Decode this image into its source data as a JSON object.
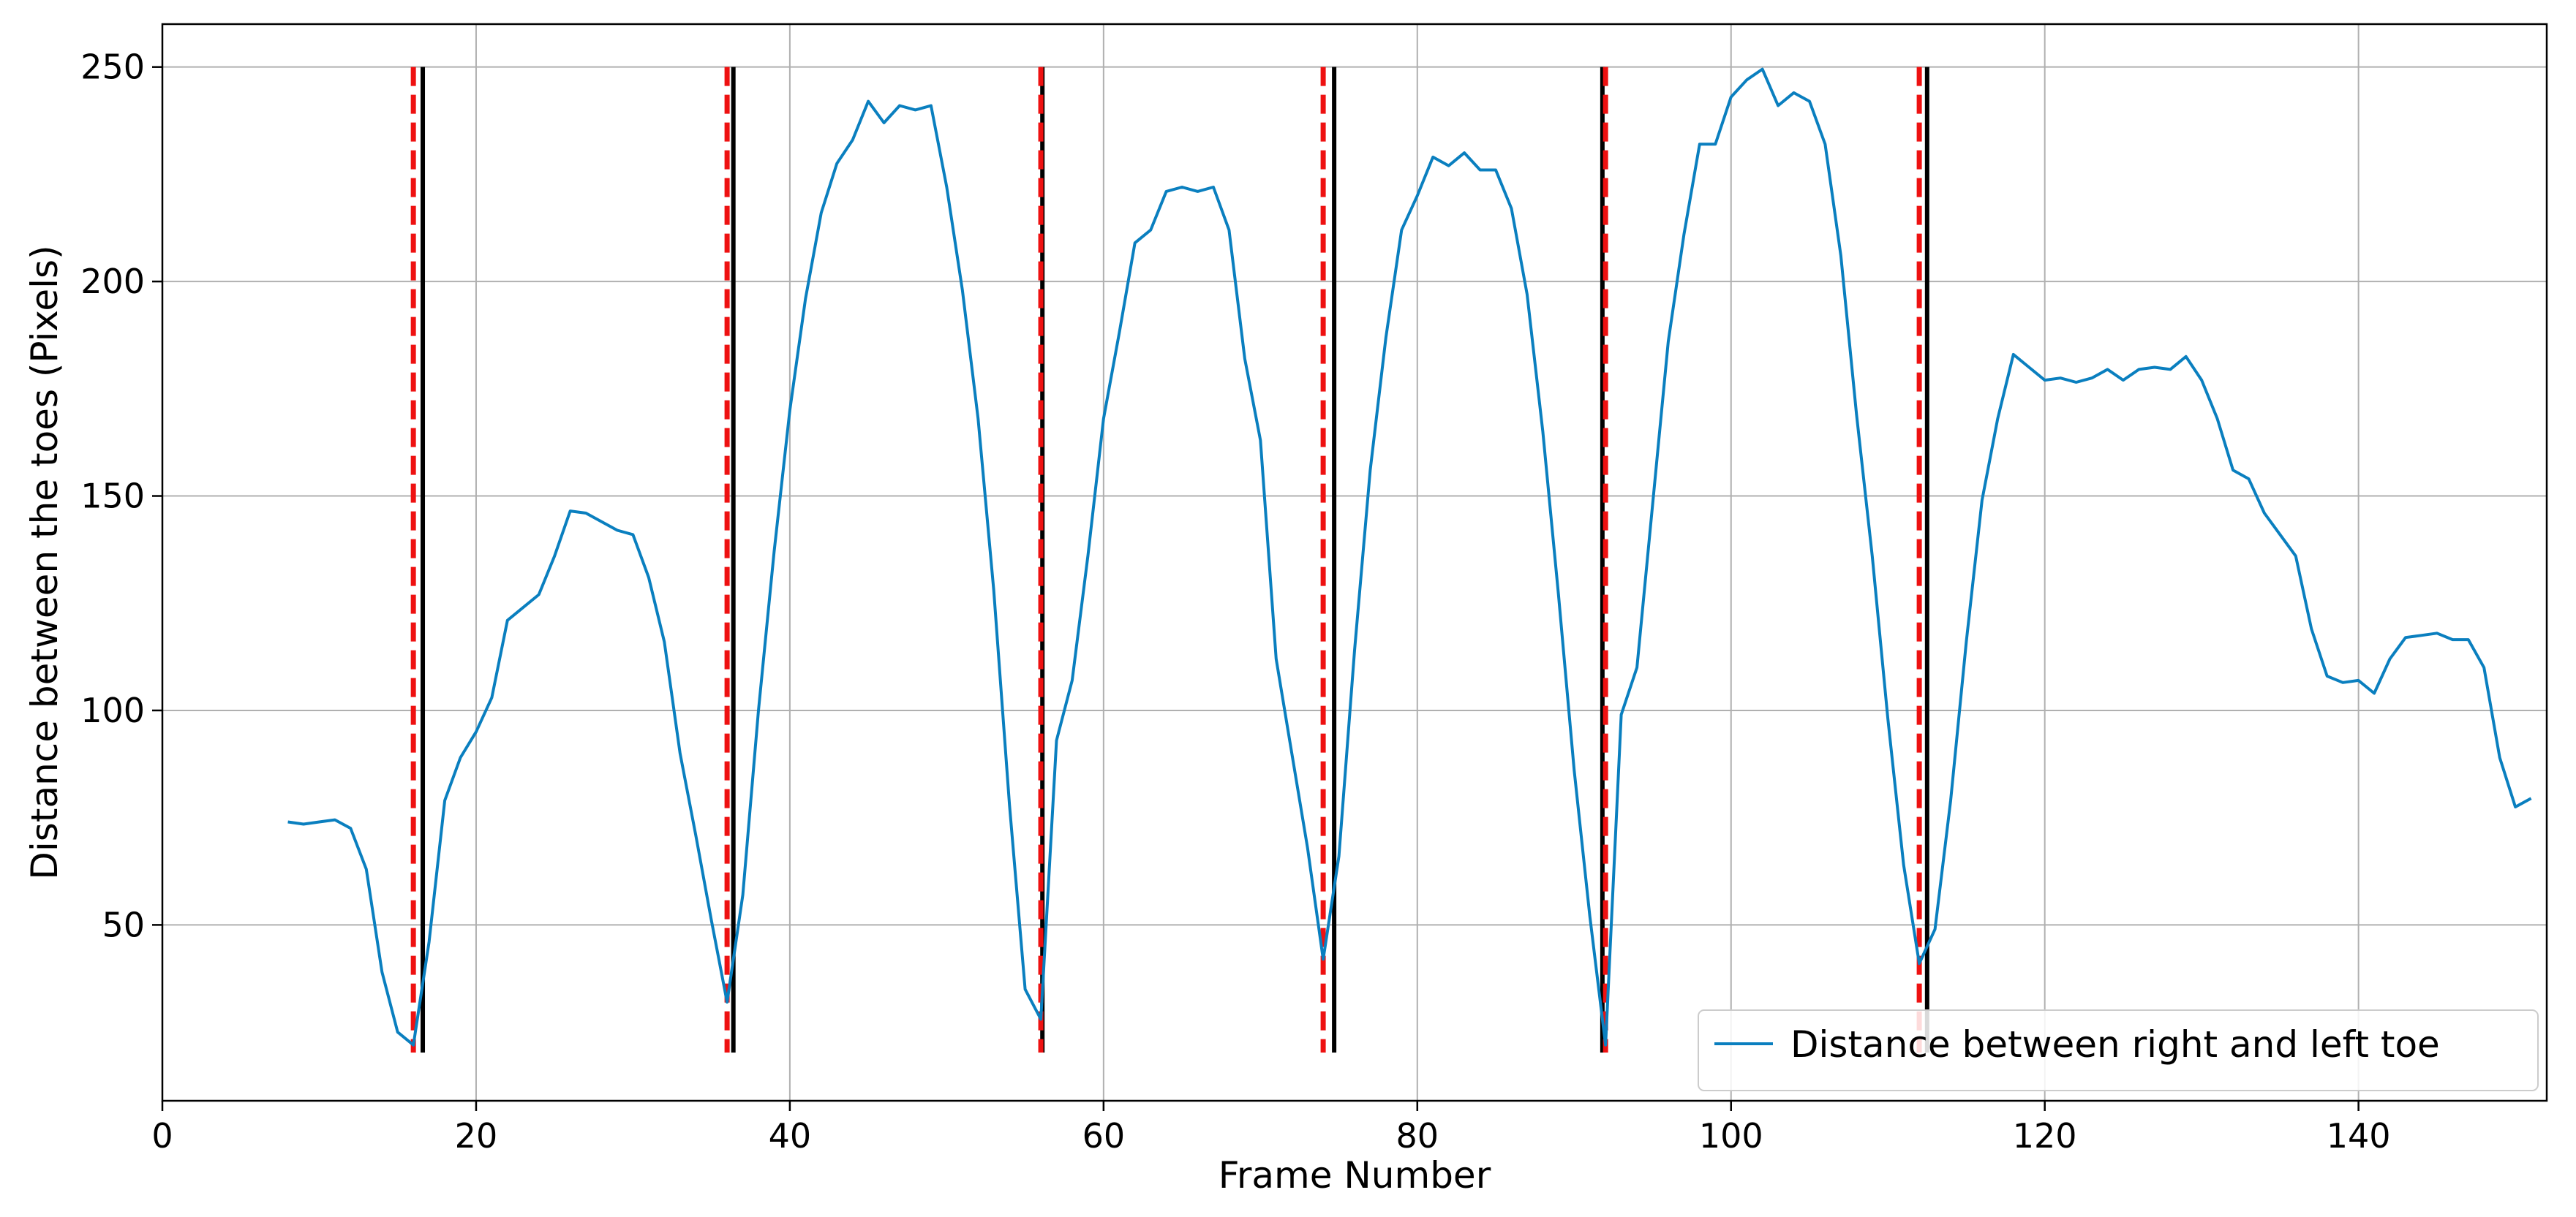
{
  "chart_data": {
    "type": "line",
    "title": "",
    "xlabel": "Frame Number",
    "ylabel": "Distance between the toes (Pixels)",
    "xlim": [
      0,
      152
    ],
    "ylim": [
      9,
      260
    ],
    "xticks": [
      0,
      20,
      40,
      60,
      80,
      100,
      120,
      140
    ],
    "yticks": [
      50,
      100,
      150,
      200,
      250
    ],
    "grid": true,
    "legend_position": "bottom-right",
    "series": [
      {
        "name": "Distance between right and left toe",
        "color": "#0a7fbf",
        "x": [
          8,
          9,
          10,
          11,
          12,
          13,
          14,
          15,
          16,
          17,
          18,
          19,
          20,
          21,
          22,
          23,
          24,
          25,
          26,
          27,
          28,
          29,
          30,
          31,
          32,
          33,
          34,
          35,
          36,
          37,
          38,
          39,
          40,
          41,
          42,
          43,
          44,
          45,
          46,
          47,
          48,
          49,
          50,
          51,
          52,
          53,
          54,
          55,
          56,
          57,
          58,
          59,
          60,
          61,
          62,
          63,
          64,
          65,
          66,
          67,
          68,
          69,
          70,
          71,
          72,
          73,
          74,
          75,
          76,
          77,
          78,
          79,
          80,
          81,
          82,
          83,
          84,
          85,
          86,
          87,
          88,
          89,
          90,
          91,
          92,
          93,
          94,
          95,
          96,
          97,
          98,
          99,
          100,
          101,
          102,
          103,
          104,
          105,
          106,
          107,
          108,
          109,
          110,
          111,
          112,
          113,
          114,
          115,
          116,
          117,
          118,
          119,
          120,
          121,
          122,
          123,
          124,
          125,
          126,
          127,
          128,
          129,
          130,
          131,
          132,
          133,
          134,
          135,
          136,
          137,
          138,
          139,
          140,
          141,
          142,
          143,
          144,
          145,
          146,
          147,
          148,
          149,
          150,
          151
        ],
        "values": [
          74,
          73.5,
          74,
          74.5,
          72.5,
          63,
          39,
          25,
          22,
          46,
          79,
          89,
          95,
          103,
          121,
          124,
          127,
          136,
          146.5,
          146,
          144,
          142,
          141,
          131,
          116,
          90,
          71,
          51,
          32,
          57,
          100,
          137,
          170,
          196,
          216,
          227.5,
          233,
          242,
          237,
          241,
          240,
          241,
          222,
          198,
          168,
          128,
          78,
          35,
          28,
          93,
          107,
          136,
          168,
          188,
          209,
          212,
          221,
          222,
          221,
          222,
          212,
          182,
          163,
          112,
          90,
          68,
          42,
          66,
          114,
          156,
          187,
          212,
          220,
          229,
          227,
          230,
          226,
          226,
          217,
          197,
          165,
          127,
          86,
          52,
          22,
          99,
          110,
          148,
          186,
          211,
          232,
          232,
          243,
          247,
          249.5,
          241,
          244,
          242,
          232,
          206,
          169,
          136,
          98,
          64,
          41,
          49,
          79,
          116,
          149,
          168,
          183,
          180,
          177,
          177.5,
          176.5,
          177.5,
          179.5,
          177,
          179.5,
          180,
          179.5,
          182.5,
          177,
          168,
          156,
          154,
          146,
          141,
          136,
          119,
          108,
          106.5,
          107,
          104,
          112,
          117,
          117.5,
          118,
          116.5,
          116.5,
          110,
          89,
          77.5,
          79.5
        ]
      }
    ],
    "vertical_markers": {
      "red_dashed": [
        16,
        36,
        56,
        74,
        92,
        112
      ],
      "black_solid": [
        16.6,
        36.4,
        56.1,
        74.7,
        91.8,
        112.5
      ]
    },
    "marker_top_value": 250
  }
}
